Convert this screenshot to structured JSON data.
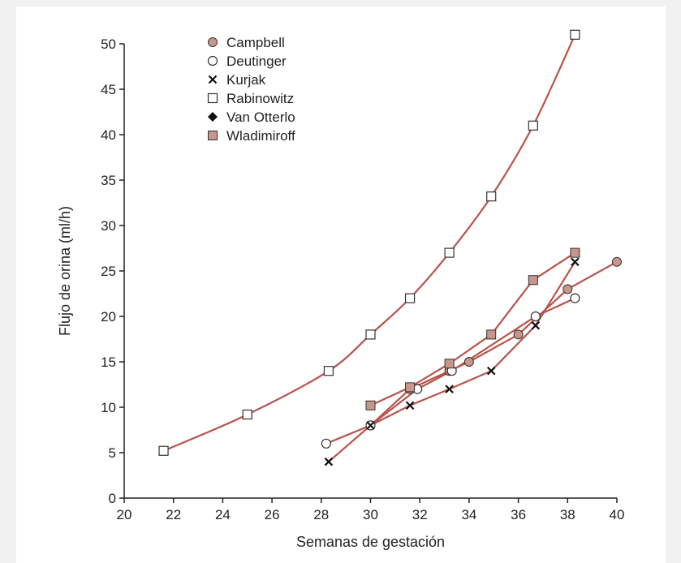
{
  "chart_data": {
    "type": "line",
    "title": "",
    "xlabel": "Semanas de gestación",
    "ylabel": "Flujo de orina (ml/h)",
    "xlim": [
      20,
      40
    ],
    "ylim": [
      0,
      50
    ],
    "xticks": [
      20,
      22,
      24,
      26,
      28,
      30,
      32,
      34,
      36,
      38,
      40
    ],
    "yticks": [
      0,
      5,
      10,
      15,
      20,
      25,
      30,
      35,
      40,
      45,
      50
    ],
    "grid": false,
    "legend_position": "top-left",
    "line_color": "#b8534a",
    "series": [
      {
        "name": "Campbell",
        "marker": "filled-circle",
        "marker_fill": "#c8968a",
        "x": [
          30,
          31.6,
          33.2,
          34,
          36,
          38,
          40
        ],
        "y": [
          8,
          12,
          14,
          15,
          18,
          23,
          26
        ]
      },
      {
        "name": "Deutinger",
        "marker": "open-circle",
        "marker_fill": "#ffffff",
        "x": [
          28.2,
          30,
          31.9,
          33.3,
          36.7,
          38.3
        ],
        "y": [
          6,
          8,
          12,
          14,
          20,
          22
        ]
      },
      {
        "name": "Kurjak",
        "marker": "cross",
        "marker_fill": "#000000",
        "x": [
          28.3,
          30,
          31.6,
          33.2,
          34.9,
          36.7,
          38.3
        ],
        "y": [
          4,
          8,
          10.2,
          12,
          14,
          19,
          26
        ]
      },
      {
        "name": "Rabinowitz",
        "marker": "open-square",
        "marker_fill": "#ffffff",
        "x": [
          21.6,
          25,
          28.3,
          30,
          31.6,
          33.2,
          34.9,
          36.6,
          38.3
        ],
        "y": [
          5.2,
          9.2,
          14,
          18,
          22,
          27,
          33.2,
          41,
          51
        ]
      },
      {
        "name": "Van Otterlo",
        "marker": "filled-diamond",
        "marker_fill": "#000000",
        "x": [],
        "y": []
      },
      {
        "name": "Wladimiroff",
        "marker": "filled-square",
        "marker_fill": "#c8968a",
        "x": [
          30,
          31.6,
          33.2,
          34.9,
          36.6,
          38.3
        ],
        "y": [
          10.2,
          12.2,
          14.8,
          18,
          24,
          27
        ]
      }
    ]
  }
}
